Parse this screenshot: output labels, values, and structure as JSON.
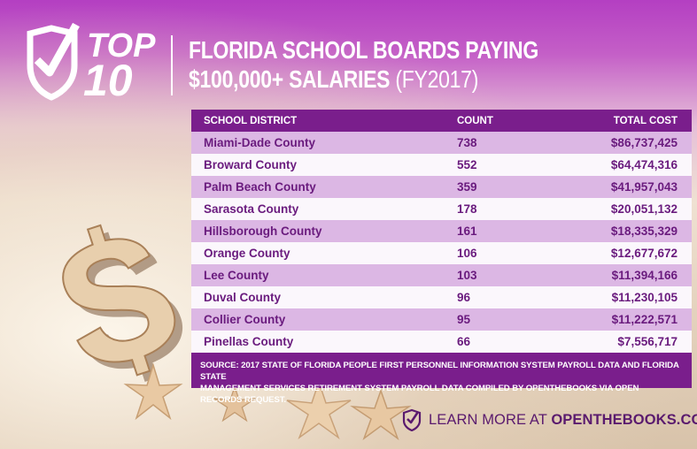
{
  "header": {
    "badge_top": "TOP",
    "badge_ten": "10",
    "title_line1": "FLORIDA SCHOOL BOARDS PAYING",
    "title_line2_bold": "$100,000+ SALARIES",
    "title_line2_light": "(FY2017)"
  },
  "table": {
    "columns": [
      "SCHOOL DISTRICT",
      "COUNT",
      "TOTAL COST"
    ],
    "rows": [
      {
        "district": "Miami-Dade County",
        "count": "738",
        "cost": "$86,737,425"
      },
      {
        "district": "Broward County",
        "count": "552",
        "cost": "$64,474,316"
      },
      {
        "district": "Palm Beach County",
        "count": "359",
        "cost": "$41,957,043"
      },
      {
        "district": "Sarasota County",
        "count": "178",
        "cost": "$20,051,132"
      },
      {
        "district": "Hillsborough County",
        "count": "161",
        "cost": "$18,335,329"
      },
      {
        "district": "Orange County",
        "count": "106",
        "cost": "$12,677,672"
      },
      {
        "district": "Lee County",
        "count": "103",
        "cost": "$11,394,166"
      },
      {
        "district": "Duval County",
        "count": "96",
        "cost": "$11,230,105"
      },
      {
        "district": "Collier County",
        "count": "95",
        "cost": "$11,222,571"
      },
      {
        "district": "Pinellas County",
        "count": "66",
        "cost": "$7,556,717"
      }
    ],
    "source_line1": "SOURCE: 2017 STATE OF FLORIDA PEOPLE FIRST PERSONNEL INFORMATION SYSTEM PAYROLL DATA AND FLORIDA STATE",
    "source_line2": "MANAGEMENT SERVICES RETIREMENT SYSTEM PAYROLL DATA COMPILED BY OPENTHEBOOKS VIA OPEN RECORDS REQUEST."
  },
  "footer": {
    "learn_prefix": "LEARN MORE AT ",
    "learn_site": "OPENTHEBOOKS.COM"
  },
  "colors": {
    "header_purple": "#b43fc2",
    "table_header": "#7a1e8c",
    "row_light_purple": "#dcb7e4",
    "text_purple": "#6a1b7e"
  },
  "icons": [
    "checkmark-shield-icon",
    "dollar-sign-image",
    "starfish-image"
  ]
}
